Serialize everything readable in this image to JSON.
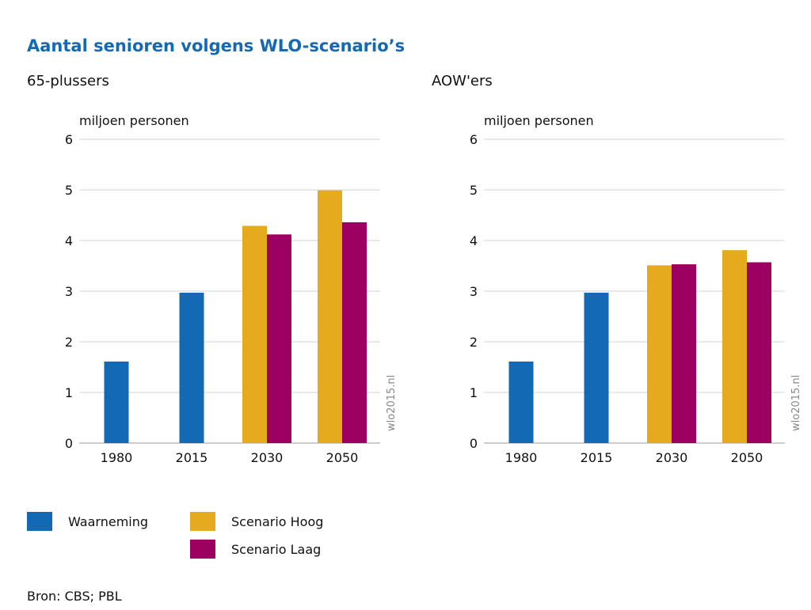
{
  "title": "Aantal senioren volgens WLO-scenario’s",
  "source": "Bron: CBS; PBL",
  "watermark": "wlo2015.nl",
  "legend": [
    {
      "name": "Waarneming",
      "color": "#1469b4"
    },
    {
      "name": "Scenario Hoog",
      "color": "#e5aa1e"
    },
    {
      "name": "Scenario Laag",
      "color": "#9c0060"
    }
  ],
  "chart_data": [
    {
      "type": "bar",
      "title": "65-plussers",
      "ylabel": "miljoen personen",
      "ylim": [
        0,
        6
      ],
      "yticks": [
        "0",
        "1",
        "2",
        "3",
        "4",
        "5",
        "6"
      ],
      "categories": [
        "1980",
        "2015",
        "2030",
        "2050"
      ],
      "grid": true,
      "series": [
        {
          "name": "Waarneming",
          "values": [
            1.61,
            2.97,
            null,
            null
          ]
        },
        {
          "name": "Scenario Hoog",
          "values": [
            null,
            null,
            4.29,
            4.99
          ]
        },
        {
          "name": "Scenario Laag",
          "values": [
            null,
            null,
            4.12,
            4.36
          ]
        }
      ]
    },
    {
      "type": "bar",
      "title": "AOW'ers",
      "ylabel": "miljoen personen",
      "ylim": [
        0,
        6
      ],
      "yticks": [
        "0",
        "1",
        "2",
        "3",
        "4",
        "5",
        "6"
      ],
      "categories": [
        "1980",
        "2015",
        "2030",
        "2050"
      ],
      "grid": true,
      "series": [
        {
          "name": "Waarneming",
          "values": [
            1.61,
            2.97,
            null,
            null
          ]
        },
        {
          "name": "Scenario Hoog",
          "values": [
            null,
            null,
            3.51,
            3.81
          ]
        },
        {
          "name": "Scenario Laag",
          "values": [
            null,
            null,
            3.53,
            3.57
          ]
        }
      ]
    }
  ]
}
